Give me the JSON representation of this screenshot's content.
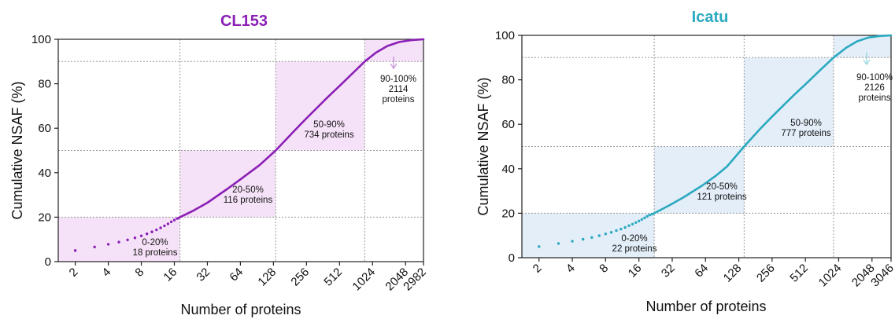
{
  "chart_data": [
    {
      "type": "line",
      "title": "CL153",
      "title_color": "#8a1fb5",
      "line_color": "#8a1fb5",
      "shade_color": "#f6e2f8",
      "x_scale": "log2",
      "xlabel": "Number of proteins",
      "ylabel": "Cumulative NSAF (%)",
      "x_ticks": [
        "2",
        "4",
        "8",
        "16",
        "32",
        "64",
        "128",
        "256",
        "512",
        "1024",
        "2048",
        "2982"
      ],
      "y_ticks": [
        "0",
        "20",
        "40",
        "60",
        "80",
        "100"
      ],
      "ylim": [
        0,
        100
      ],
      "xlim": [
        1.4,
        2982
      ],
      "total_proteins": 2982,
      "grid": true,
      "thresholds": [
        {
          "x": 18,
          "y": 20
        },
        {
          "x": 134,
          "y": 50
        },
        {
          "x": 868,
          "y": 90
        },
        {
          "x": 2982,
          "y": 100
        }
      ],
      "regions": [
        {
          "lines": [
            "0-20%",
            "18 proteins"
          ]
        },
        {
          "lines": [
            "20-50%",
            "116 proteins"
          ]
        },
        {
          "lines": [
            "50-90%",
            "734 proteins"
          ]
        },
        {
          "lines": [
            "90-100%",
            "2114",
            "proteins"
          ]
        }
      ],
      "series": [
        {
          "x": [
            2,
            3,
            4,
            5,
            6,
            7,
            8,
            9,
            10,
            11,
            12,
            13,
            14,
            15,
            16,
            17,
            18,
            24,
            32,
            48,
            64,
            96,
            134,
            200,
            256,
            400,
            512,
            700,
            868,
            1100,
            1400,
            1800,
            2300,
            2982
          ],
          "y": [
            5.0,
            6.6,
            7.8,
            8.8,
            9.8,
            10.7,
            11.6,
            12.5,
            13.4,
            14.3,
            15.2,
            16.1,
            17.0,
            17.9,
            18.7,
            19.4,
            20.0,
            23.0,
            26.5,
            32.5,
            37.0,
            43.5,
            50.0,
            59.0,
            64.5,
            74.0,
            79.0,
            85.5,
            90.0,
            94.0,
            97.0,
            98.8,
            99.6,
            100.0
          ]
        }
      ]
    },
    {
      "type": "line",
      "title": "Icatu",
      "title_color": "#2aa9c0",
      "line_color": "#2aa9c0",
      "shade_color": "#e3eef8",
      "x_scale": "log2",
      "xlabel": "Number of proteins",
      "ylabel": "Cumulative NSAF (%)",
      "x_ticks": [
        "2",
        "4",
        "8",
        "16",
        "32",
        "64",
        "128",
        "256",
        "512",
        "1024",
        "2048",
        "3046"
      ],
      "y_ticks": [
        "0",
        "20",
        "40",
        "60",
        "80",
        "100"
      ],
      "ylim": [
        0,
        100
      ],
      "xlim": [
        1.4,
        3046
      ],
      "total_proteins": 3046,
      "grid": true,
      "thresholds": [
        {
          "x": 22,
          "y": 20
        },
        {
          "x": 143,
          "y": 50
        },
        {
          "x": 920,
          "y": 90
        },
        {
          "x": 3046,
          "y": 100
        }
      ],
      "regions": [
        {
          "lines": [
            "0-20%",
            "22 proteins"
          ]
        },
        {
          "lines": [
            "20-50%",
            "121 proteins"
          ]
        },
        {
          "lines": [
            "50-90%",
            "777 proteins"
          ]
        },
        {
          "lines": [
            "90-100%",
            "2126",
            "proteins"
          ]
        }
      ],
      "series": [
        {
          "x": [
            2,
            3,
            4,
            5,
            6,
            7,
            8,
            9,
            10,
            11,
            12,
            13,
            14,
            15,
            16,
            17,
            18,
            19,
            20,
            21,
            22,
            30,
            40,
            60,
            80,
            100,
            143,
            200,
            256,
            400,
            512,
            700,
            920,
            1200,
            1500,
            1900,
            2400,
            3046
          ],
          "y": [
            5.0,
            6.4,
            7.4,
            8.3,
            9.1,
            9.9,
            10.7,
            11.4,
            12.2,
            12.9,
            13.6,
            14.4,
            15.1,
            15.8,
            16.5,
            17.2,
            17.9,
            18.6,
            19.2,
            19.6,
            20.0,
            23.5,
            27.0,
            32.5,
            37.0,
            41.0,
            50.0,
            58.0,
            63.5,
            73.0,
            78.0,
            84.5,
            90.0,
            94.5,
            97.3,
            99.0,
            99.7,
            100.0
          ]
        }
      ]
    }
  ]
}
